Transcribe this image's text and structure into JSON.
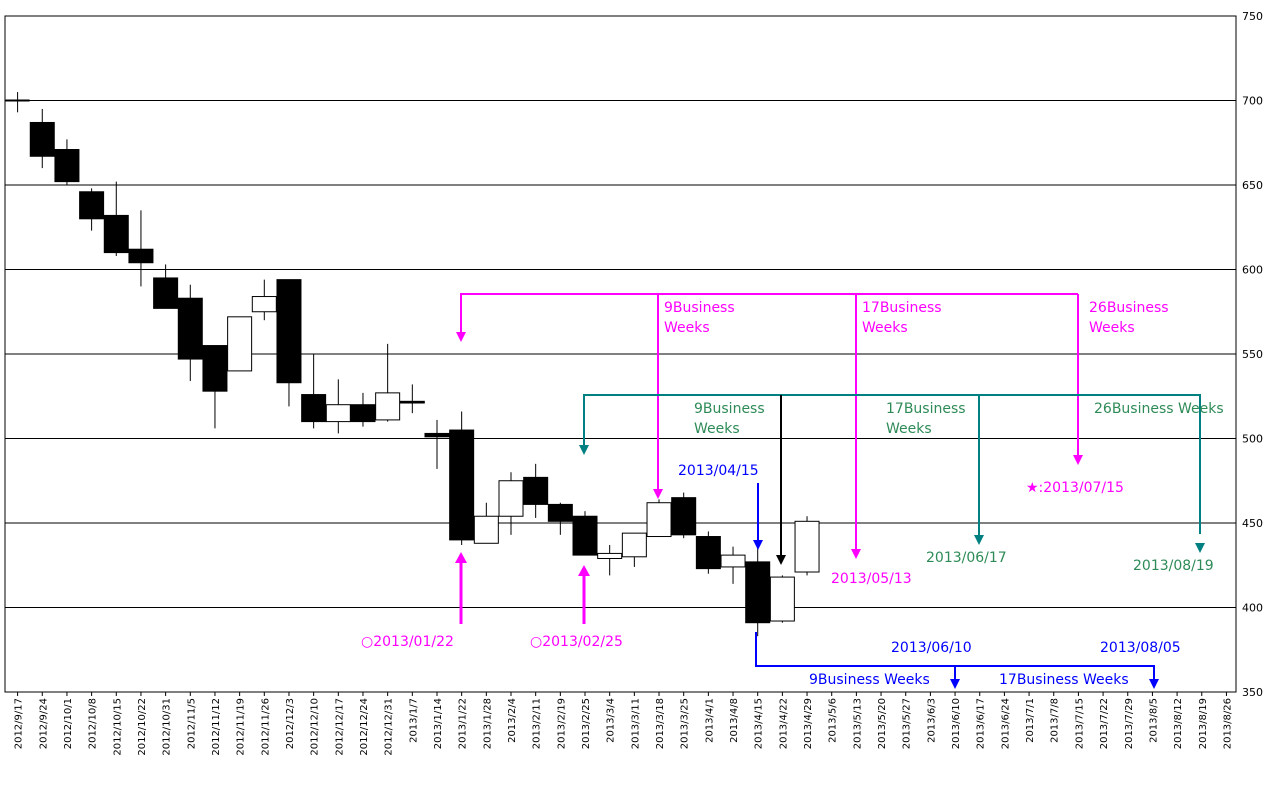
{
  "chart_data": {
    "type": "candlestick",
    "ylim": [
      350,
      750
    ],
    "y_ticks": [
      350,
      400,
      450,
      500,
      550,
      600,
      650,
      700,
      750
    ],
    "y_tick_labels": [
      "350",
      "400",
      "450",
      "500",
      "550",
      "600",
      "650",
      "700",
      "750"
    ],
    "grid": true,
    "x_labels": [
      "2012/9/17",
      "2012/9/24",
      "2012/10/1",
      "2012/10/8",
      "2012/10/15",
      "2012/10/22",
      "2012/10/31",
      "2012/11/5",
      "2012/11/12",
      "2012/11/19",
      "2012/11/26",
      "2012/12/3",
      "2012/12/10",
      "2012/12/17",
      "2012/12/24",
      "2012/12/31",
      "2013/1/7",
      "2013/1/14",
      "2013/1/22",
      "2013/1/28",
      "2013/2/4",
      "2013/2/11",
      "2013/2/19",
      "2013/2/25",
      "2013/3/4",
      "2013/3/11",
      "2013/3/18",
      "2013/3/25",
      "2013/4/1",
      "2013/4/8",
      "2013/4/15",
      "2013/4/22",
      "2013/4/29",
      "2013/5/6",
      "2013/5/13",
      "2013/5/20",
      "2013/5/27",
      "2013/6/3",
      "2013/6/10",
      "2013/6/17",
      "2013/6/24",
      "2013/7/1",
      "2013/7/8",
      "2013/7/15",
      "2013/7/22",
      "2013/7/29",
      "2013/8/5",
      "2013/8/12",
      "2013/8/19",
      "2013/8/26"
    ],
    "candles": [
      {
        "o": 700,
        "h": 705,
        "l": 693,
        "c": 700
      },
      {
        "o": 687,
        "h": 695,
        "l": 660,
        "c": 667
      },
      {
        "o": 671,
        "h": 677,
        "l": 650,
        "c": 652
      },
      {
        "o": 646,
        "h": 648,
        "l": 623,
        "c": 630
      },
      {
        "o": 632,
        "h": 652,
        "l": 608,
        "c": 610
      },
      {
        "o": 612,
        "h": 635,
        "l": 590,
        "c": 604
      },
      {
        "o": 595,
        "h": 603,
        "l": 577,
        "c": 577
      },
      {
        "o": 583,
        "h": 591,
        "l": 534,
        "c": 547
      },
      {
        "o": 555,
        "h": 555,
        "l": 506,
        "c": 528
      },
      {
        "o": 540,
        "h": 572,
        "l": 540,
        "c": 572
      },
      {
        "o": 575,
        "h": 594,
        "l": 570,
        "c": 584
      },
      {
        "o": 594,
        "h": 594,
        "l": 519,
        "c": 533
      },
      {
        "o": 526,
        "h": 550,
        "l": 506,
        "c": 510
      },
      {
        "o": 510,
        "h": 535,
        "l": 503,
        "c": 520
      },
      {
        "o": 520,
        "h": 527,
        "l": 507,
        "c": 510
      },
      {
        "o": 511,
        "h": 556,
        "l": 510,
        "c": 527
      },
      {
        "o": 522,
        "h": 532,
        "l": 515,
        "c": 521
      },
      {
        "o": 503,
        "h": 511,
        "l": 482,
        "c": 501
      },
      {
        "o": 505,
        "h": 516,
        "l": 437,
        "c": 440
      },
      {
        "o": 438,
        "h": 462,
        "l": 438,
        "c": 454
      },
      {
        "o": 454,
        "h": 480,
        "l": 443,
        "c": 475
      },
      {
        "o": 477,
        "h": 485,
        "l": 453,
        "c": 461
      },
      {
        "o": 461,
        "h": 462,
        "l": 443,
        "c": 451
      },
      {
        "o": 454,
        "h": 457,
        "l": 431,
        "c": 431
      },
      {
        "o": 429,
        "h": 437,
        "l": 419,
        "c": 432
      },
      {
        "o": 430,
        "h": 444,
        "l": 424,
        "c": 444
      },
      {
        "o": 442,
        "h": 464,
        "l": 442,
        "c": 462
      },
      {
        "o": 465,
        "h": 468,
        "l": 441,
        "c": 443
      },
      {
        "o": 442,
        "h": 445,
        "l": 420,
        "c": 423
      },
      {
        "o": 424,
        "h": 436,
        "l": 414,
        "c": 431
      },
      {
        "o": 427,
        "h": 439,
        "l": 383,
        "c": 391
      },
      {
        "o": 392,
        "h": 419,
        "l": 391,
        "c": 418
      },
      {
        "o": 421,
        "h": 454,
        "l": 419,
        "c": 451
      }
    ]
  },
  "annotations": {
    "magenta_9": "9Business",
    "magenta_9b": "Weeks",
    "magenta_17": "17Business",
    "magenta_17b": "Weeks",
    "magenta_26": "26Business",
    "magenta_26b": "Weeks",
    "teal_9": "9Business",
    "teal_9b": "Weeks",
    "teal_17": "17Business",
    "teal_17b": "Weeks",
    "teal_26": "26Business Weeks",
    "date_0122": "○2013/01/22",
    "date_0225": "○2013/02/25",
    "date_0415": "2013/04/15",
    "date_0513": "2013/05/13",
    "date_0617": "2013/06/17",
    "date_0715": "★:2013/07/15",
    "date_0819": "2013/08/19",
    "date_0610": "2013/06/10",
    "date_0805": "2013/08/05",
    "blue_9": "9Business Weeks",
    "blue_17": "17Business Weeks"
  },
  "colors": {
    "magenta": "#ff00ff",
    "teal": "#008080",
    "green_text": "#2e8b57",
    "blue": "#0000ff",
    "black": "#000000"
  }
}
